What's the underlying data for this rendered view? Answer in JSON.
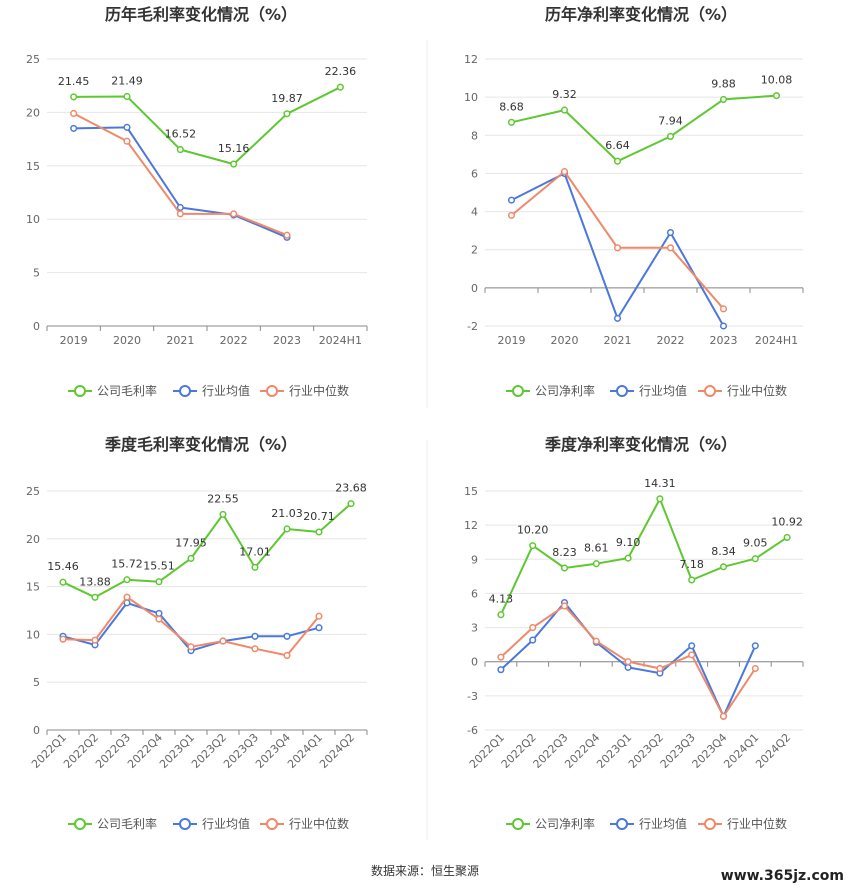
{
  "colors": {
    "company": "#5ec832",
    "avg": "#4a78dc",
    "median": "#f0886a",
    "grid": "#e6e6e6",
    "axis": "#888888"
  },
  "legend_icon": "circle-line-icon",
  "source_note": "数据来源：恒生聚源",
  "watermark": "www.365jz.com",
  "chart_data": [
    {
      "type": "line",
      "title": "历年毛利率变化情况（%）",
      "categories": [
        "2019",
        "2020",
        "2021",
        "2022",
        "2023",
        "2024H1"
      ],
      "ylim": [
        0,
        25
      ],
      "yticks": [
        0,
        5,
        10,
        15,
        20,
        25
      ],
      "xlabel": "",
      "ylabel": "",
      "grid": true,
      "legend": "bottom",
      "series": [
        {
          "name": "公司毛利率",
          "key": "company",
          "values": [
            21.45,
            21.49,
            16.52,
            15.16,
            19.87,
            22.36
          ],
          "labels": [
            "21.45",
            "21.49",
            "16.52",
            "15.16",
            "19.87",
            "22.36"
          ]
        },
        {
          "name": "行业均值",
          "key": "avg",
          "values": [
            18.5,
            18.6,
            11.1,
            10.4,
            8.3,
            null
          ]
        },
        {
          "name": "行业中位数",
          "key": "median",
          "values": [
            19.9,
            17.3,
            10.5,
            10.5,
            8.5,
            null
          ]
        }
      ]
    },
    {
      "type": "line",
      "title": "历年净利率变化情况（%）",
      "categories": [
        "2019",
        "2020",
        "2021",
        "2022",
        "2023",
        "2024H1"
      ],
      "ylim": [
        -2,
        12
      ],
      "yticks": [
        -2,
        0,
        2,
        4,
        6,
        8,
        10,
        12
      ],
      "xlabel": "",
      "ylabel": "",
      "grid": true,
      "legend": "bottom",
      "series": [
        {
          "name": "公司净利率",
          "key": "company",
          "values": [
            8.68,
            9.32,
            6.64,
            7.94,
            9.88,
            10.08
          ],
          "labels": [
            "8.68",
            "9.32",
            "6.64",
            "7.94",
            "9.88",
            "10.08"
          ]
        },
        {
          "name": "行业均值",
          "key": "avg",
          "values": [
            4.6,
            6.0,
            -1.6,
            2.9,
            -2.0,
            null
          ]
        },
        {
          "name": "行业中位数",
          "key": "median",
          "values": [
            3.8,
            6.1,
            2.1,
            2.1,
            -1.1,
            null
          ]
        }
      ]
    },
    {
      "type": "line",
      "title": "季度毛利率变化情况（%）",
      "categories": [
        "2022Q1",
        "2022Q2",
        "2022Q3",
        "2022Q4",
        "2023Q1",
        "2023Q2",
        "2023Q3",
        "2023Q4",
        "2024Q1",
        "2024Q2"
      ],
      "ylim": [
        0,
        25
      ],
      "yticks": [
        0,
        5,
        10,
        15,
        20,
        25
      ],
      "xlabel": "",
      "ylabel": "",
      "grid": true,
      "legend": "bottom",
      "series": [
        {
          "name": "公司毛利率",
          "key": "company",
          "values": [
            15.46,
            13.88,
            15.72,
            15.51,
            17.95,
            22.55,
            17.01,
            21.03,
            20.71,
            23.68
          ],
          "labels": [
            "15.46",
            "13.88",
            "15.72",
            "15.51",
            "17.95",
            "22.55",
            "17.01",
            "21.03",
            "20.71",
            "23.68"
          ]
        },
        {
          "name": "行业均值",
          "key": "avg",
          "values": [
            9.8,
            8.9,
            13.3,
            12.2,
            8.3,
            9.3,
            9.8,
            9.8,
            10.7,
            null
          ]
        },
        {
          "name": "行业中位数",
          "key": "median",
          "values": [
            9.5,
            9.4,
            13.9,
            11.6,
            8.7,
            9.3,
            8.5,
            7.8,
            11.9,
            null
          ]
        }
      ]
    },
    {
      "type": "line",
      "title": "季度净利率变化情况（%）",
      "categories": [
        "2022Q1",
        "2022Q2",
        "2022Q3",
        "2022Q4",
        "2023Q1",
        "2023Q2",
        "2023Q3",
        "2023Q4",
        "2024Q1",
        "2024Q2"
      ],
      "ylim": [
        -6,
        15
      ],
      "yticks": [
        -6,
        -3,
        0,
        3,
        6,
        9,
        12,
        15
      ],
      "xlabel": "",
      "ylabel": "",
      "grid": true,
      "legend": "bottom",
      "series": [
        {
          "name": "公司净利率",
          "key": "company",
          "values": [
            4.13,
            10.2,
            8.23,
            8.61,
            9.1,
            14.31,
            7.18,
            8.34,
            9.05,
            10.92
          ],
          "labels": [
            "4.13",
            "10.20",
            "8.23",
            "8.61",
            "9.10",
            "14.31",
            "7.18",
            "8.34",
            "9.05",
            "10.92"
          ]
        },
        {
          "name": "行业均值",
          "key": "avg",
          "values": [
            -0.7,
            1.9,
            5.2,
            1.7,
            -0.5,
            -1.0,
            1.4,
            -4.8,
            1.4,
            null
          ]
        },
        {
          "name": "行业中位数",
          "key": "median",
          "values": [
            0.4,
            3.0,
            4.9,
            1.8,
            0.0,
            -0.6,
            0.6,
            -4.8,
            -0.6,
            null
          ]
        }
      ]
    }
  ]
}
